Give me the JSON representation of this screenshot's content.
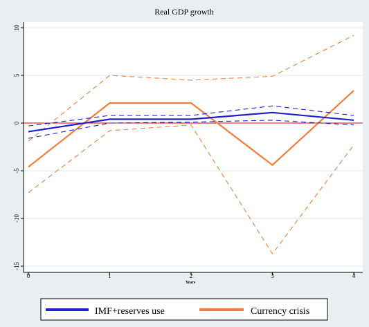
{
  "chart_data": {
    "type": "line",
    "title": "Real GDP growth",
    "xlabel": "Years",
    "ylabel": "",
    "x": [
      0,
      1,
      2,
      3,
      4
    ],
    "x_ticks": [
      "0",
      "1",
      "2",
      "3",
      "4"
    ],
    "y_ticks": [
      "10",
      "5",
      "0",
      "-5",
      "-10",
      "-15"
    ],
    "xlim": [
      0,
      4
    ],
    "ylim": [
      -15,
      10
    ],
    "grid": true,
    "legend_position": "bottom",
    "zero_line_color": "#cc0000",
    "series": [
      {
        "name": "IMF+reserves use",
        "color": "#1f1fd0",
        "values": [
          -0.9,
          0.4,
          0.4,
          1.1,
          0.3
        ],
        "ci_upper": [
          -0.3,
          0.8,
          0.8,
          1.8,
          0.8
        ],
        "ci_lower": [
          -1.6,
          0.0,
          0.1,
          0.3,
          -0.2
        ]
      },
      {
        "name": "Currency crisis",
        "color": "#f07e3a",
        "values": [
          -4.6,
          2.1,
          2.1,
          -4.4,
          3.4
        ],
        "ci_upper": [
          -1.9,
          5.0,
          4.5,
          4.9,
          9.2
        ],
        "ci_lower": [
          -7.3,
          -0.8,
          -0.2,
          -13.7,
          -2.3
        ]
      }
    ]
  }
}
